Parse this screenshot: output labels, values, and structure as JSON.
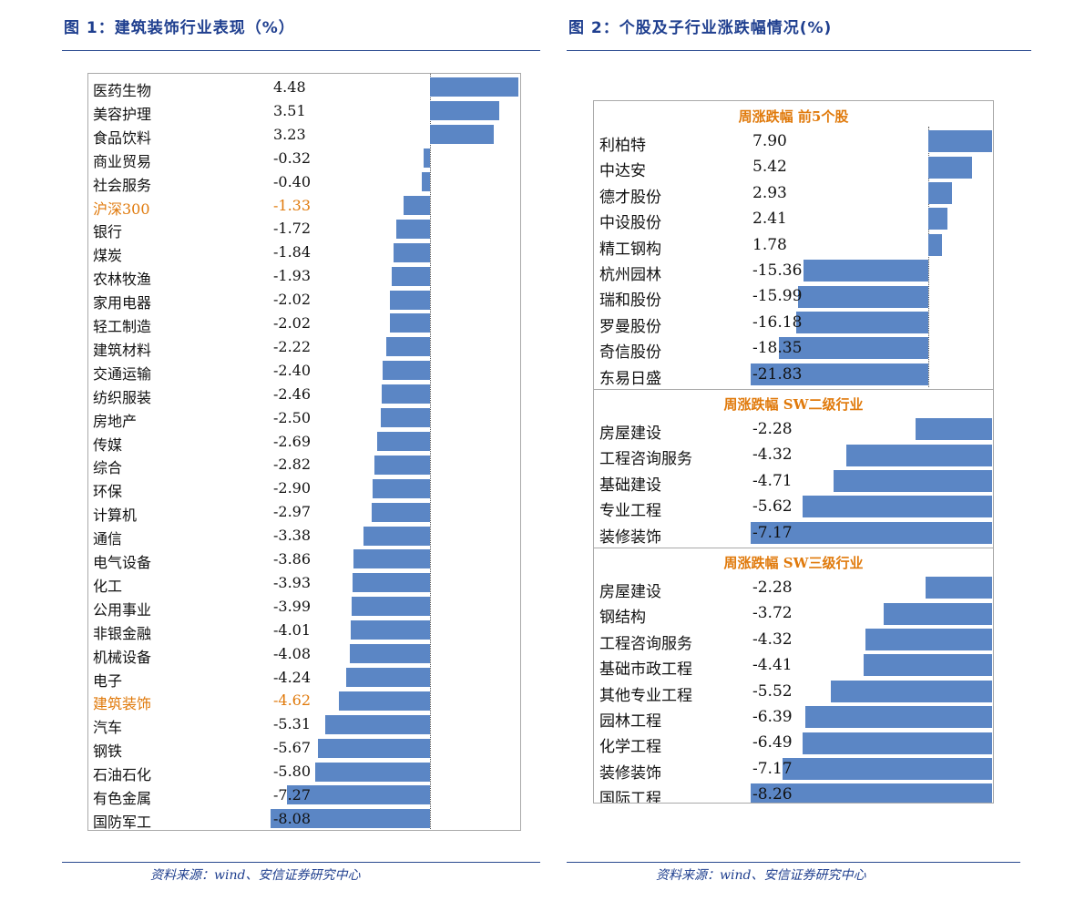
{
  "figure1": {
    "title": "图 1：建筑装饰行业表现（%）",
    "source": "资料来源：wind、安信证券研究中心"
  },
  "figure2": {
    "title": "图 2：个股及子行业涨跌幅情况(%)",
    "source": "资料来源：wind、安信证券研究中心"
  },
  "colors": {
    "bar": "#5b86c5",
    "highlight_text": "#e07a0c",
    "title": "#1f3f8f"
  },
  "chart_data": [
    {
      "type": "bar",
      "orientation": "horizontal",
      "categories": [
        "医药生物",
        "美容护理",
        "食品饮料",
        "商业贸易",
        "社会服务",
        "沪深300",
        "银行",
        "煤炭",
        "农林牧渔",
        "家用电器",
        "轻工制造",
        "建筑材料",
        "交通运输",
        "纺织服装",
        "房地产",
        "传媒",
        "综合",
        "环保",
        "计算机",
        "通信",
        "电气设备",
        "化工",
        "公用事业",
        "非银金融",
        "机械设备",
        "电子",
        "建筑装饰",
        "汽车",
        "钢铁",
        "石油石化",
        "有色金属",
        "国防军工"
      ],
      "values": [
        4.48,
        3.51,
        3.23,
        -0.32,
        -0.4,
        -1.33,
        -1.72,
        -1.84,
        -1.93,
        -2.02,
        -2.02,
        -2.22,
        -2.4,
        -2.46,
        -2.5,
        -2.69,
        -2.82,
        -2.9,
        -2.97,
        -3.38,
        -3.86,
        -3.93,
        -3.99,
        -4.01,
        -4.08,
        -4.24,
        -4.62,
        -5.31,
        -5.67,
        -5.8,
        -7.27,
        -8.08
      ],
      "value_labels": [
        "4.48",
        "3.51",
        "3.23",
        "-0.32",
        "-0.40",
        "-1.33",
        "-1.72",
        "-1.84",
        "-1.93",
        "-2.02",
        "-2.02",
        "-2.22",
        "-2.40",
        "-2.46",
        "-2.50",
        "-2.69",
        "-2.82",
        "-2.90",
        "-2.97",
        "-3.38",
        "-3.86",
        "-3.93",
        "-3.99",
        "-4.01",
        "-4.08",
        "-4.24",
        "-4.62",
        "-5.31",
        "-5.67",
        "-5.80",
        "-7.27",
        "-8.08"
      ],
      "highlighted": [
        "沪深300",
        "建筑装饰"
      ],
      "xlim": [
        -8.08,
        4.48
      ]
    },
    {
      "type": "bar",
      "orientation": "horizontal",
      "sections": [
        {
          "title": "周涨跌幅  前5个股",
          "categories": [
            "利柏特",
            "中达安",
            "德才股份",
            "中设股份",
            "精工钢构",
            "杭州园林",
            "瑞和股份",
            "罗曼股份",
            "奇信股份",
            "东易日盛"
          ],
          "values": [
            7.9,
            5.42,
            2.93,
            2.41,
            1.78,
            -15.36,
            -15.99,
            -16.18,
            -18.35,
            -21.83
          ],
          "value_labels": [
            "7.90",
            "5.42",
            "2.93",
            "2.41",
            "1.78",
            "-15.36",
            "-15.99",
            "-16.18",
            "-18.35",
            "-21.83"
          ],
          "xlim": [
            -21.83,
            7.9
          ]
        },
        {
          "title": "周涨跌幅  SW二级行业",
          "categories": [
            "房屋建设",
            "工程咨询服务",
            "基础建设",
            "专业工程",
            "装修装饰"
          ],
          "values": [
            -2.28,
            -4.32,
            -4.71,
            -5.62,
            -7.17
          ],
          "value_labels": [
            "-2.28",
            "-4.32",
            "-4.71",
            "-5.62",
            "-7.17"
          ],
          "xlim": [
            -7.17,
            0
          ]
        },
        {
          "title": "周涨跌幅  SW三级行业",
          "categories": [
            "房屋建设",
            "钢结构",
            "工程咨询服务",
            "基础市政工程",
            "其他专业工程",
            "园林工程",
            "化学工程",
            "装修装饰",
            "国际工程"
          ],
          "values": [
            -2.28,
            -3.72,
            -4.32,
            -4.41,
            -5.52,
            -6.39,
            -6.49,
            -7.17,
            -8.26
          ],
          "value_labels": [
            "-2.28",
            "-3.72",
            "-4.32",
            "-4.41",
            "-5.52",
            "-6.39",
            "-6.49",
            "-7.17",
            "-8.26"
          ],
          "xlim": [
            -8.26,
            0
          ]
        }
      ]
    }
  ]
}
